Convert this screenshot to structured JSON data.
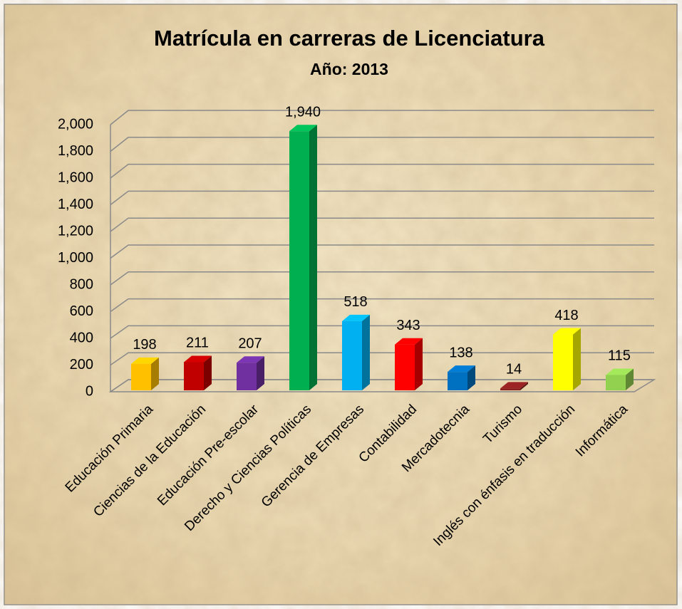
{
  "chart_data": {
    "type": "bar3d",
    "title": "Matrícula en carreras de Licenciatura",
    "subtitle": "Año: 2013",
    "categories": [
      "Educación Primaria",
      "Ciencias de la Educación",
      "Educación Pre-escolar",
      "Derecho y Ciencias Políticas",
      "Gerencia de Empresas",
      "Contabilidad",
      "Mercadotecnia",
      "Turismo",
      "Inglés con énfasis en traducción",
      "Informática"
    ],
    "values": [
      198,
      211,
      207,
      1940,
      518,
      343,
      138,
      14,
      418,
      115
    ],
    "value_labels": [
      "198",
      "211",
      "207",
      "1,940",
      "518",
      "343",
      "138",
      "14",
      "418",
      "115"
    ],
    "colors": [
      "#ffc000",
      "#c00000",
      "#7030a0",
      "#00b050",
      "#00b0f0",
      "#ff0000",
      "#0070c0",
      "#8b2020",
      "#ffff00",
      "#92d050"
    ],
    "ylim": [
      0,
      2000
    ],
    "yticks": [
      0,
      200,
      400,
      600,
      800,
      {
        "value": 1000,
        "label": "1,000"
      },
      {
        "value": 1200,
        "label": "1,200"
      },
      {
        "value": 1400,
        "label": "1,400"
      },
      {
        "value": 1600,
        "label": "1,600"
      },
      {
        "value": 1800,
        "label": "1,800"
      },
      {
        "value": 2000,
        "label": "2,000"
      }
    ],
    "grid": true
  }
}
